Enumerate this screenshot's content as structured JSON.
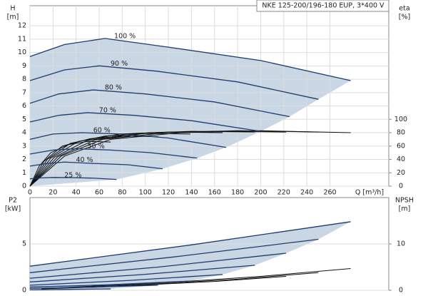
{
  "chart_data": [
    {
      "type": "line",
      "title": "NKE 125-200/196-180 EUP, 3*400 V",
      "ylabel": "H",
      "yunit": "[m]",
      "y2label": "eta",
      "y2unit": "[%]",
      "xlabel": "Q [m³/h]",
      "xlim": [
        0,
        311
      ],
      "ylim": [
        0,
        13.5
      ],
      "y2lim": [
        0,
        270
      ],
      "xticks": [
        0,
        20,
        40,
        60,
        80,
        100,
        120,
        140,
        160,
        180,
        200,
        220,
        240,
        260
      ],
      "yticks": [
        0,
        1,
        2,
        3,
        4,
        5,
        6,
        7,
        8,
        9,
        10,
        11,
        12
      ],
      "y2ticks": [
        0,
        20,
        40,
        60,
        80,
        100
      ],
      "grid": true,
      "shade_color": "#c9d6e4",
      "line_color": "#1d3b6e",
      "y2_color": "#111111",
      "series": [
        {
          "name": "100 %",
          "x": [
            0,
            30,
            65,
            120,
            200,
            278
          ],
          "values": [
            9.7,
            10.6,
            11.05,
            10.4,
            9.4,
            7.9
          ]
        },
        {
          "name": "90 %",
          "x": [
            0,
            30,
            60,
            110,
            180,
            250
          ],
          "values": [
            7.9,
            8.7,
            9.0,
            8.6,
            7.8,
            6.5
          ]
        },
        {
          "name": "80 %",
          "x": [
            0,
            25,
            55,
            100,
            160,
            225
          ],
          "values": [
            6.2,
            6.9,
            7.2,
            6.9,
            6.3,
            5.2
          ]
        },
        {
          "name": "70 %",
          "x": [
            0,
            25,
            50,
            90,
            140,
            200
          ],
          "values": [
            4.8,
            5.3,
            5.5,
            5.3,
            4.9,
            4.1
          ]
        },
        {
          "name": "60 %",
          "x": [
            0,
            20,
            45,
            80,
            120,
            170
          ],
          "values": [
            3.5,
            3.9,
            4.0,
            3.9,
            3.6,
            2.9
          ]
        },
        {
          "name": "50 %",
          "x": [
            0,
            20,
            40,
            70,
            105,
            145
          ],
          "values": [
            2.4,
            2.7,
            2.8,
            2.7,
            2.5,
            2.1
          ]
        },
        {
          "name": "40 %",
          "x": [
            0,
            15,
            30,
            55,
            85,
            115
          ],
          "values": [
            1.5,
            1.7,
            1.8,
            1.7,
            1.6,
            1.3
          ]
        },
        {
          "name": "25 %",
          "x": [
            0,
            10,
            20,
            35,
            55,
            75
          ],
          "values": [
            0.55,
            0.62,
            0.65,
            0.64,
            0.6,
            0.5
          ]
        }
      ],
      "y2_series": [
        {
          "x": [
            0,
            30,
            70,
            130,
            200,
            278
          ],
          "values": [
            0,
            45,
            70,
            80,
            83,
            80
          ]
        },
        {
          "x": [
            0,
            27,
            63,
            117,
            180,
            250
          ],
          "values": [
            0,
            45,
            70,
            80,
            83,
            81
          ]
        },
        {
          "x": [
            0,
            24,
            56,
            104,
            160,
            222
          ],
          "values": [
            0,
            44,
            69,
            80,
            82,
            81
          ]
        },
        {
          "x": [
            0,
            21,
            49,
            91,
            140,
            195
          ],
          "values": [
            0,
            43,
            68,
            79,
            82,
            81
          ]
        },
        {
          "x": [
            0,
            18,
            42,
            78,
            120,
            167
          ],
          "values": [
            0,
            42,
            67,
            78,
            81,
            80
          ]
        },
        {
          "x": [
            0,
            15,
            35,
            65,
            100,
            139
          ],
          "values": [
            0,
            40,
            64,
            75,
            79,
            78
          ]
        },
        {
          "x": [
            0,
            12,
            28,
            52,
            80,
            111
          ],
          "values": [
            0,
            37,
            60,
            71,
            75,
            74
          ]
        },
        {
          "x": [
            0,
            8,
            18,
            33,
            50,
            70
          ],
          "values": [
            0,
            30,
            50,
            62,
            67,
            66
          ]
        }
      ]
    },
    {
      "type": "line",
      "ylabel": "P2",
      "yunit": "[kW]",
      "y2label": "NPSH",
      "y2unit": "[m]",
      "xlim": [
        0,
        311
      ],
      "ylim": [
        0,
        10
      ],
      "y2lim": [
        0,
        20
      ],
      "yticks": [
        0,
        5
      ],
      "y2ticks": [
        0,
        10
      ],
      "grid": true,
      "shade_color": "#c9d6e4",
      "line_color": "#1d3b6e",
      "y2_color": "#111111",
      "series": [
        {
          "x": [
            0,
            140,
            278
          ],
          "values": [
            2.6,
            4.9,
            7.4
          ]
        },
        {
          "x": [
            0,
            125,
            250
          ],
          "values": [
            1.9,
            3.6,
            5.5
          ]
        },
        {
          "x": [
            0,
            111,
            222
          ],
          "values": [
            1.3,
            2.5,
            4.0
          ]
        },
        {
          "x": [
            0,
            98,
            195
          ],
          "values": [
            0.9,
            1.7,
            2.7
          ]
        },
        {
          "x": [
            0,
            84,
            167
          ],
          "values": [
            0.55,
            1.05,
            1.7
          ]
        },
        {
          "x": [
            0,
            70,
            139
          ],
          "values": [
            0.35,
            0.6,
            1.0
          ]
        },
        {
          "x": [
            0,
            56,
            111
          ],
          "values": [
            0.2,
            0.35,
            0.55
          ]
        },
        {
          "x": [
            0,
            35,
            70
          ],
          "values": [
            0.05,
            0.1,
            0.15
          ]
        }
      ],
      "y2_series": [
        {
          "x": [
            20,
            80,
            140,
            200,
            278
          ],
          "values": [
            0.5,
            1.2,
            2.0,
            3.0,
            4.7
          ]
        },
        {
          "x": [
            15,
            70,
            125,
            180,
            250
          ],
          "values": [
            0.4,
            0.9,
            1.6,
            2.4,
            3.8
          ]
        },
        {
          "x": [
            10,
            60,
            110,
            160,
            222
          ],
          "values": [
            0.3,
            0.7,
            1.3,
            1.9,
            3.0
          ]
        }
      ]
    }
  ]
}
